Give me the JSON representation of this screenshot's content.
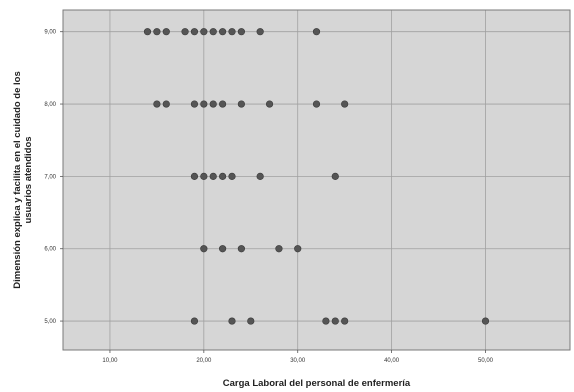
{
  "chart_data": {
    "type": "scatter",
    "xlabel": "Carga Laboral del personal de enfermería",
    "ylabel_lines": [
      "Dimensión explica y facilita en el cuidado de los",
      "usuarios atendidos"
    ],
    "xlim": [
      5,
      59
    ],
    "ylim": [
      4.6,
      9.3
    ],
    "x_ticks": [
      10,
      20,
      30,
      40,
      50
    ],
    "x_tick_labels": [
      "10,00",
      "20,00",
      "30,00",
      "40,00",
      "50,00"
    ],
    "y_ticks": [
      5,
      6,
      7,
      8,
      9
    ],
    "y_tick_labels": [
      "5,00",
      "6,00",
      "7,00",
      "8,00",
      "9,00"
    ],
    "grid": true,
    "colors": {
      "plot_bg": "#d6d6d6",
      "grid": "#a0a0a0",
      "point": "#555555",
      "frame": "#7a7a7a"
    },
    "series": [
      {
        "points": [
          [
            14,
            9
          ],
          [
            15,
            9
          ],
          [
            16,
            9
          ],
          [
            18,
            9
          ],
          [
            19,
            9
          ],
          [
            20,
            9
          ],
          [
            21,
            9
          ],
          [
            22,
            9
          ],
          [
            23,
            9
          ],
          [
            24,
            9
          ],
          [
            26,
            9
          ],
          [
            32,
            9
          ],
          [
            15,
            8
          ],
          [
            16,
            8
          ],
          [
            19,
            8
          ],
          [
            20,
            8
          ],
          [
            21,
            8
          ],
          [
            22,
            8
          ],
          [
            24,
            8
          ],
          [
            27,
            8
          ],
          [
            32,
            8
          ],
          [
            35,
            8
          ],
          [
            19,
            7
          ],
          [
            20,
            7
          ],
          [
            21,
            7
          ],
          [
            22,
            7
          ],
          [
            23,
            7
          ],
          [
            26,
            7
          ],
          [
            34,
            7
          ],
          [
            20,
            6
          ],
          [
            22,
            6
          ],
          [
            24,
            6
          ],
          [
            28,
            6
          ],
          [
            30,
            6
          ],
          [
            19,
            5
          ],
          [
            23,
            5
          ],
          [
            25,
            5
          ],
          [
            33,
            5
          ],
          [
            34,
            5
          ],
          [
            35,
            5
          ],
          [
            50,
            5
          ]
        ]
      }
    ]
  }
}
